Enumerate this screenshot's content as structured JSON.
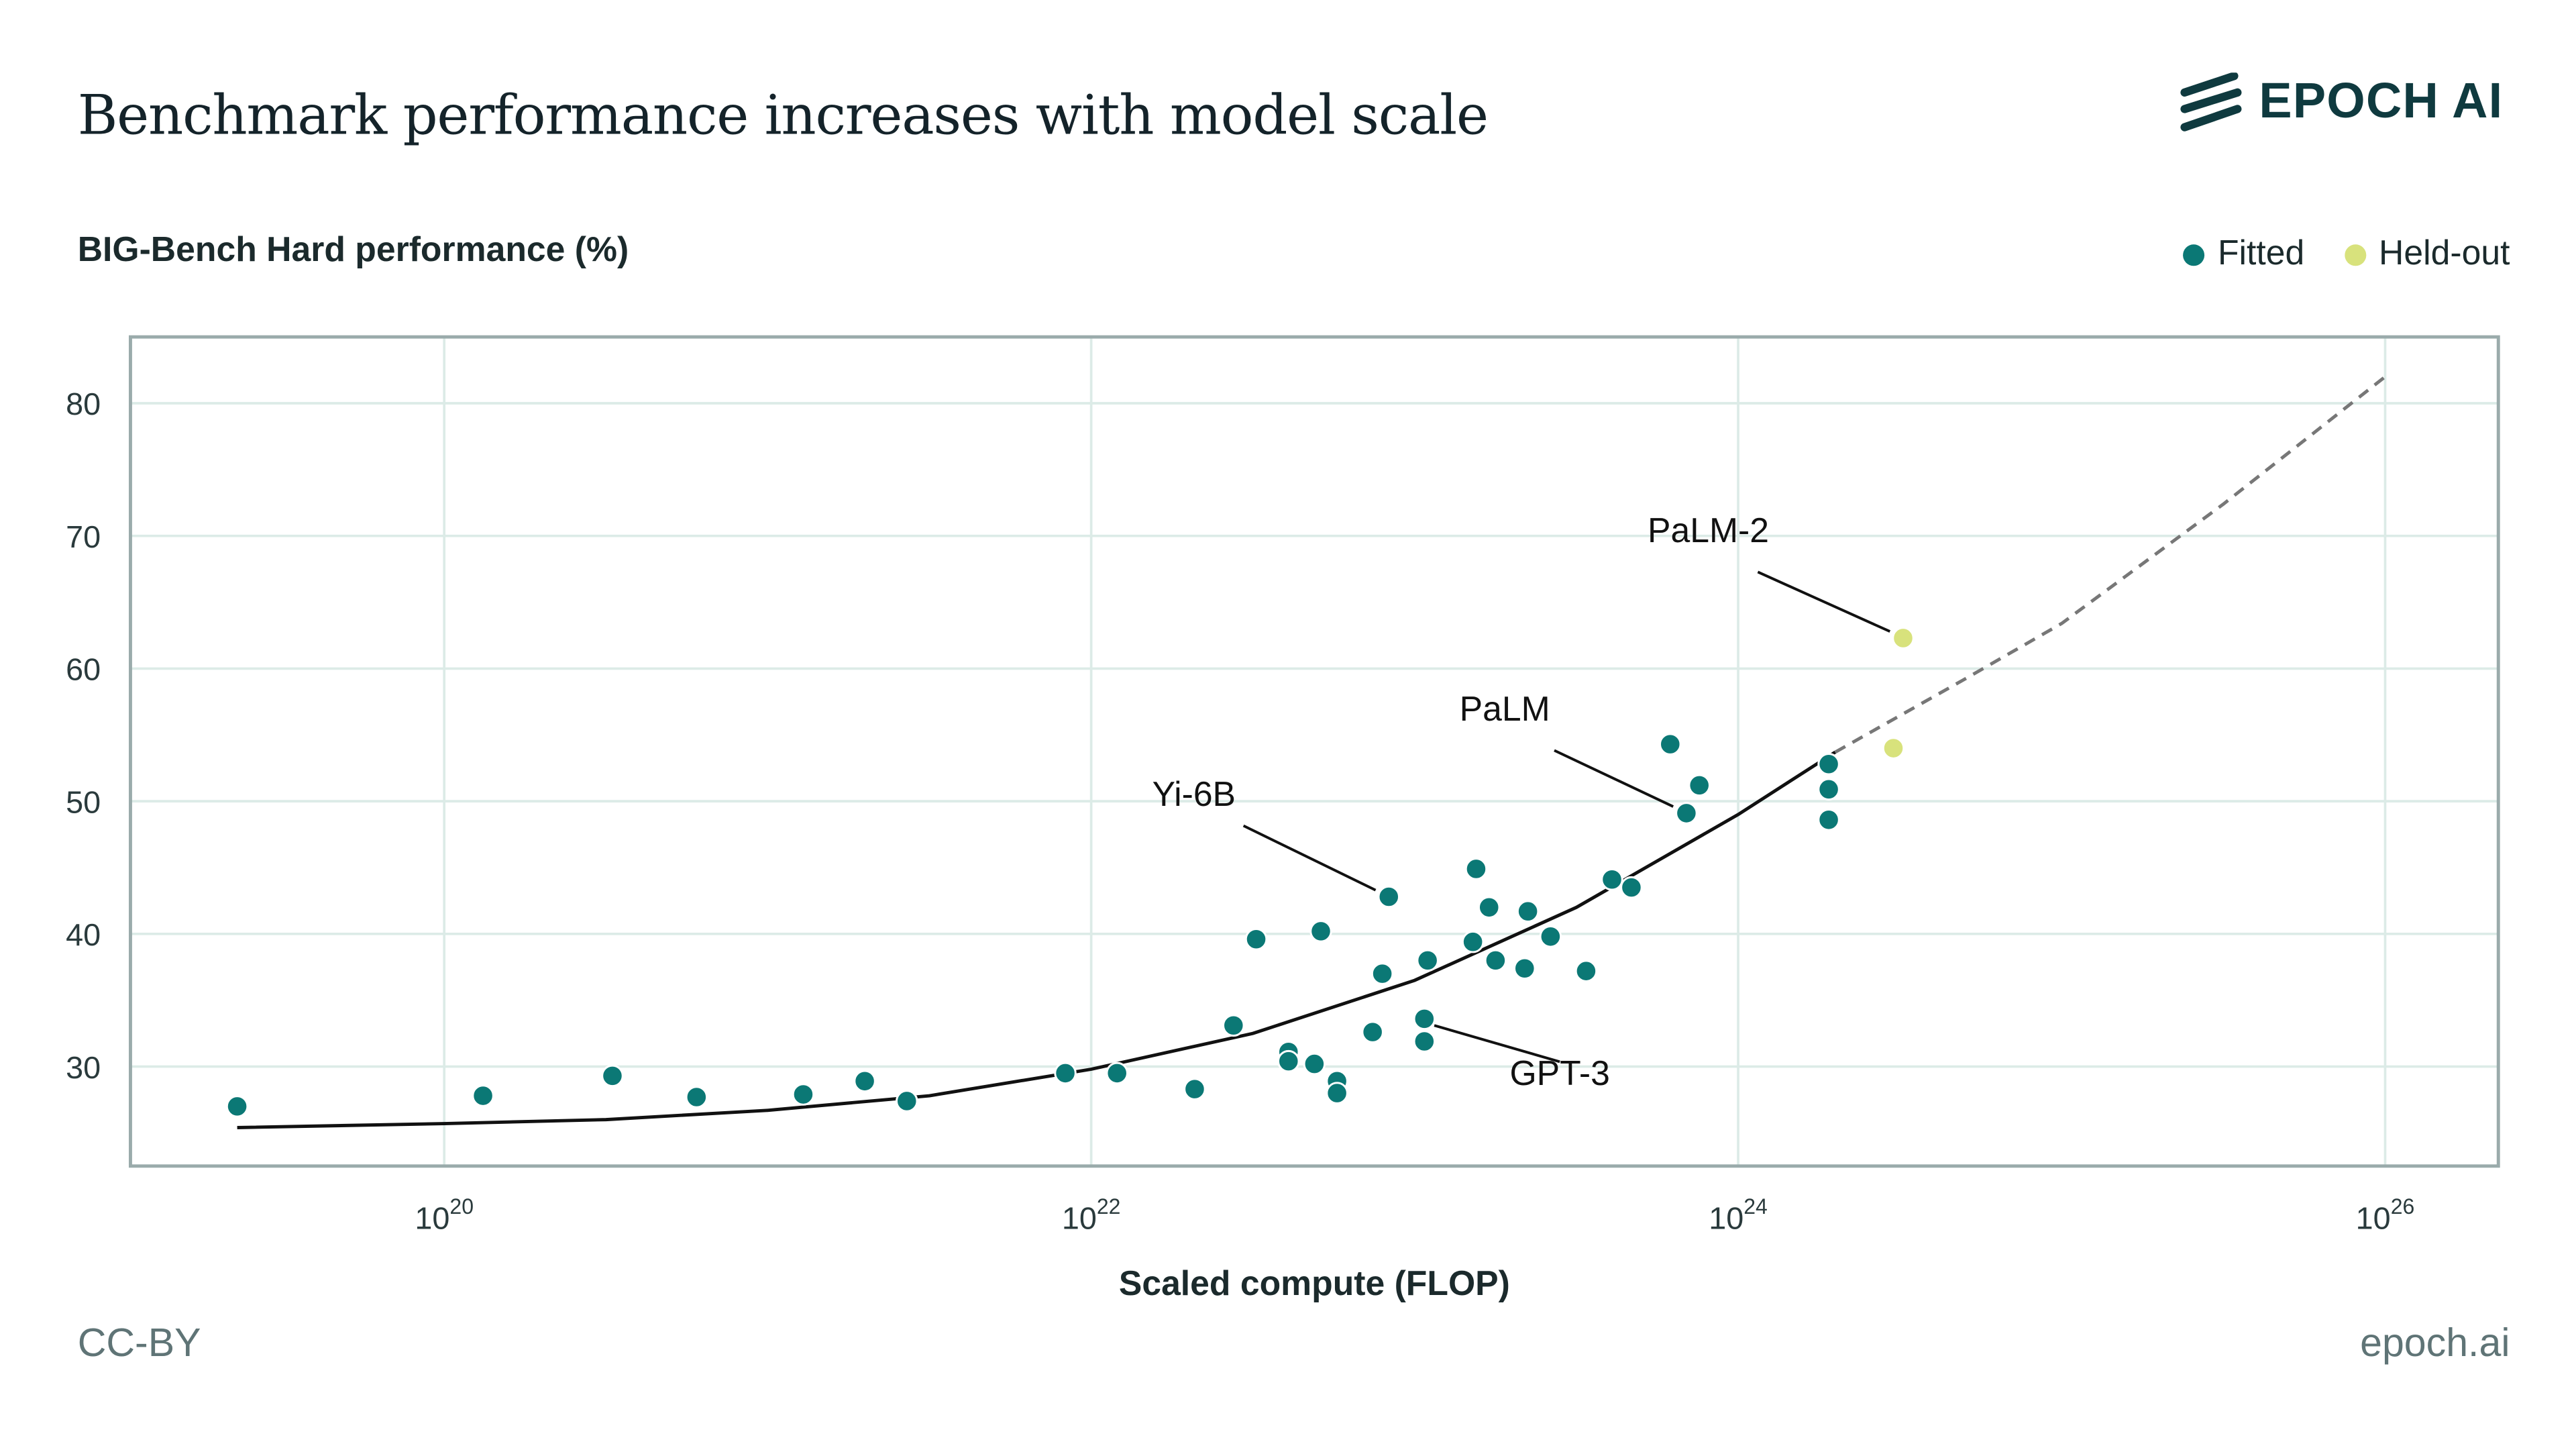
{
  "header": {
    "title": "Benchmark performance increases with model scale",
    "logo_text": "EPOCH AI"
  },
  "footer": {
    "license": "CC-BY",
    "site": "epoch.ai"
  },
  "colors": {
    "fitted": "#0b7875",
    "held_out": "#d8e27c",
    "curve": "#111111",
    "grid": "#dcebe7",
    "frame": "#9aabab"
  },
  "chart_data": {
    "type": "scatter",
    "title": "Benchmark performance increases with model scale",
    "ylabel": "BIG-Bench Hard performance (%)",
    "xlabel": "Scaled compute (FLOP)",
    "x_scale": "log",
    "xlim_log10": [
      19.03,
      26.35
    ],
    "ylim": [
      22.5,
      85
    ],
    "grid": true,
    "legend_position": "top-right",
    "x_ticks": [
      {
        "base": "10",
        "exp": "20",
        "value": 1e+20
      },
      {
        "base": "10",
        "exp": "22",
        "value": 1e+22
      },
      {
        "base": "10",
        "exp": "24",
        "value": 1e+24
      },
      {
        "base": "10",
        "exp": "26",
        "value": 1e+26
      }
    ],
    "y_ticks": [
      30,
      40,
      50,
      60,
      70,
      80
    ],
    "series": [
      {
        "name": "Fitted",
        "points_log10x_y": [
          [
            19.36,
            27.0
          ],
          [
            20.12,
            27.8
          ],
          [
            20.52,
            29.3
          ],
          [
            20.78,
            27.7
          ],
          [
            21.11,
            27.9
          ],
          [
            21.3,
            28.9
          ],
          [
            21.43,
            27.4
          ],
          [
            21.92,
            29.5
          ],
          [
            22.08,
            29.5
          ],
          [
            22.32,
            28.3
          ],
          [
            22.44,
            33.1
          ],
          [
            22.51,
            39.6
          ],
          [
            22.61,
            31.1
          ],
          [
            22.61,
            30.4
          ],
          [
            22.69,
            30.2
          ],
          [
            22.71,
            40.2
          ],
          [
            22.76,
            28.9
          ],
          [
            22.76,
            28.0
          ],
          [
            22.87,
            32.6
          ],
          [
            22.9,
            37.0
          ],
          [
            22.92,
            42.8
          ],
          [
            23.03,
            33.6
          ],
          [
            23.03,
            31.9
          ],
          [
            23.04,
            38.0
          ],
          [
            23.18,
            39.4
          ],
          [
            23.19,
            44.9
          ],
          [
            23.23,
            42.0
          ],
          [
            23.25,
            38.0
          ],
          [
            23.34,
            37.4
          ],
          [
            23.35,
            41.7
          ],
          [
            23.42,
            39.8
          ],
          [
            23.53,
            37.2
          ],
          [
            23.61,
            44.1
          ],
          [
            23.67,
            43.5
          ],
          [
            23.79,
            54.3
          ],
          [
            23.84,
            49.1
          ],
          [
            23.88,
            51.2
          ],
          [
            24.28,
            52.8
          ],
          [
            24.28,
            50.9
          ],
          [
            24.28,
            48.6
          ]
        ]
      },
      {
        "name": "Held-out",
        "points_log10x_y": [
          [
            24.51,
            62.3
          ],
          [
            24.48,
            54.0
          ]
        ]
      }
    ],
    "fit_curve": {
      "solid": [
        [
          19.36,
          25.4
        ],
        [
          20,
          25.7
        ],
        [
          20.5,
          26.0
        ],
        [
          21,
          26.7
        ],
        [
          21.5,
          27.8
        ],
        [
          22,
          29.8
        ],
        [
          22.5,
          32.5
        ],
        [
          23,
          36.5
        ],
        [
          23.5,
          42.0
        ],
        [
          24,
          49.0
        ],
        [
          24.3,
          53.7
        ]
      ],
      "dashed": [
        [
          24.3,
          53.7
        ],
        [
          24.7,
          59.2
        ],
        [
          25,
          63.4
        ],
        [
          25.5,
          72.4
        ],
        [
          26,
          82.0
        ]
      ]
    },
    "annotations": [
      {
        "label": "PaLM-2",
        "point": [
          24.51,
          62.3
        ]
      },
      {
        "label": "PaLM",
        "point": [
          23.84,
          49.1
        ]
      },
      {
        "label": "Yi-6B",
        "point": [
          22.92,
          42.8
        ]
      },
      {
        "label": "GPT-3",
        "point": [
          23.03,
          33.6
        ]
      }
    ]
  }
}
